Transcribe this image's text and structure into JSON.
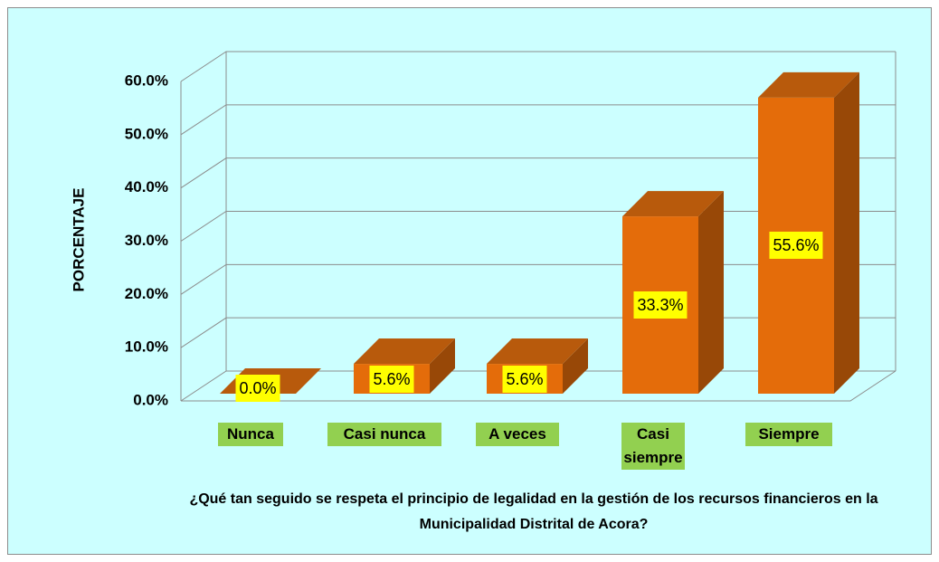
{
  "chart_data": {
    "type": "bar3d",
    "y_axis_label": "PORCENTAJE",
    "x_axis_label": "¿Qué tan seguido se respeta el principio de legalidad en la gestión de los recursos financieros en la Municipalidad Distrital de Acora?",
    "categories": [
      "Nunca",
      "Casi nunca",
      "A veces",
      "Casi siempre",
      "Siempre"
    ],
    "values": [
      0,
      5.6,
      5.6,
      33.3,
      55.6
    ],
    "value_labels": [
      "0.0%",
      "5.6%",
      "5.6%",
      "33.3%",
      "55.6%"
    ],
    "color": "#e46c0a",
    "ylim": [
      0,
      60
    ],
    "yticks": [
      {
        "value": 0,
        "label": "0.0%"
      },
      {
        "value": 10,
        "label": "10.0%"
      },
      {
        "value": 20,
        "label": "20.0%"
      },
      {
        "value": 30,
        "label": "30.0%"
      },
      {
        "value": 40,
        "label": "40.0%"
      },
      {
        "value": 50,
        "label": "50.0%"
      },
      {
        "value": 60,
        "label": "60.0%"
      }
    ],
    "grid": true
  }
}
